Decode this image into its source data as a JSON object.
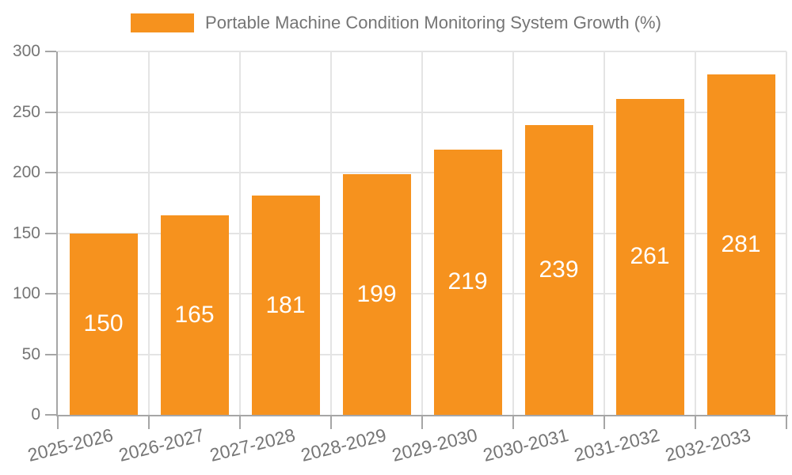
{
  "chart_data": {
    "type": "bar",
    "title": "Portable Machine Condition Monitoring System Growth (%)",
    "categories": [
      "2025-2026",
      "2026-2027",
      "2027-2028",
      "2028-2029",
      "2029-2030",
      "2030-2031",
      "2031-2032",
      "2032-2033"
    ],
    "values": [
      150,
      165,
      181,
      199,
      219,
      239,
      261,
      281
    ],
    "xlabel": "",
    "ylabel": "",
    "ylim": [
      0,
      300
    ],
    "yticks": [
      0,
      50,
      100,
      150,
      200,
      250,
      300
    ],
    "grid": true,
    "legend_position": "top-center",
    "bar_value_labels_inside": true,
    "colors": {
      "bar": "#F6921E",
      "bar_label": "#FFFFFF",
      "axis_line": "#A6A6A6",
      "gridline": "#E4E4E4",
      "text": "#757575",
      "background": "#FFFFFF"
    }
  }
}
